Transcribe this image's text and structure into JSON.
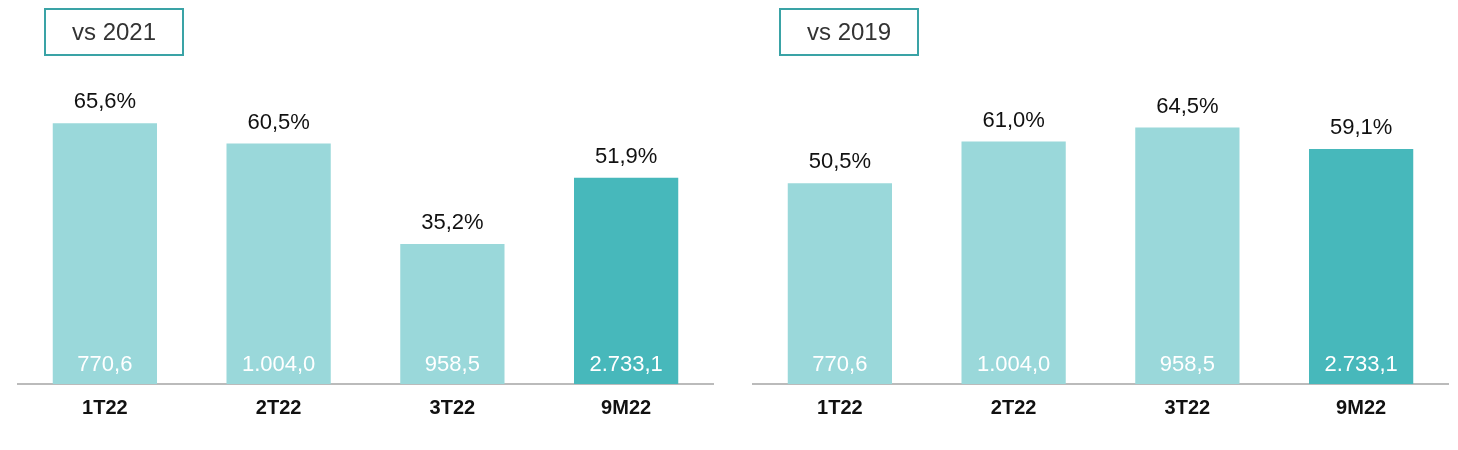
{
  "chart_data": [
    {
      "type": "bar",
      "title": "vs 2021",
      "categories": [
        "1T22",
        "2T22",
        "3T22",
        "9M22"
      ],
      "values": [
        65.6,
        60.5,
        35.2,
        51.9
      ],
      "colors": [
        "#9ad8da",
        "#9ad8da",
        "#9ad8da",
        "#47b8bb"
      ],
      "value_labels": [
        "65,6%",
        "60,5%",
        "35,2%",
        "51,9%"
      ],
      "grid": false,
      "legend": false,
      "tick_labels": "x",
      "annotations": [
        {
          "text": "770,6",
          "x": "1T22",
          "y": 0
        },
        {
          "text": "1.004,0",
          "x": "2T22",
          "y": 0
        },
        {
          "text": "958,5",
          "x": "3T22",
          "y": 0
        },
        {
          "text": "2.733,1",
          "x": "9M22",
          "y": 0
        }
      ]
    },
    {
      "type": "bar",
      "title": "vs 2019",
      "categories": [
        "1T22",
        "2T22",
        "3T22",
        "9M22"
      ],
      "values": [
        50.5,
        61.0,
        64.5,
        59.1
      ],
      "colors": [
        "#9ad8da",
        "#9ad8da",
        "#9ad8da",
        "#47b8bb"
      ],
      "value_labels": [
        "50,5%",
        "61,0%",
        "64,5%",
        "59,1%"
      ],
      "grid": false,
      "legend": false,
      "tick_labels": "x",
      "annotations": [
        {
          "text": "770,6",
          "x": "1T22",
          "y": 0
        },
        {
          "text": "1.004,0",
          "x": "2T22",
          "y": 0
        },
        {
          "text": "958,5",
          "x": "3T22",
          "y": 0
        },
        {
          "text": "2.733,1",
          "x": "9M22",
          "y": 0
        }
      ]
    }
  ]
}
